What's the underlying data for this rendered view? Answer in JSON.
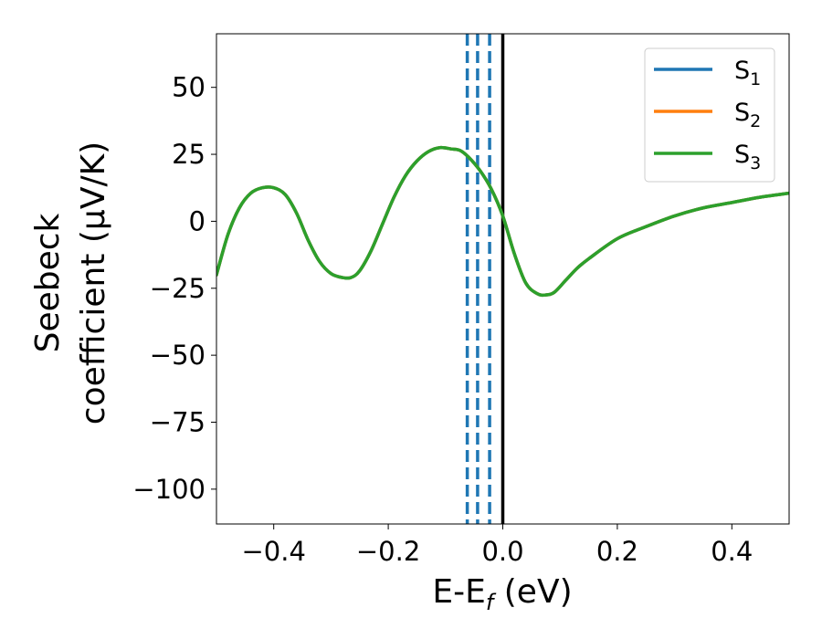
{
  "chart_data": {
    "type": "line",
    "xlabel": "E-E",
    "xlabel_sub": "f",
    "xlabel_unit": " (eV)",
    "ylabel_line1": "Seebeck",
    "ylabel_line2": "coefficient  (μV/K)",
    "xlim": [
      -0.5,
      0.5
    ],
    "ylim": [
      -113,
      70
    ],
    "xticks": [
      -0.4,
      -0.2,
      0.0,
      0.2,
      0.4
    ],
    "xtick_labels": [
      "−0.4",
      "−0.2",
      "0.0",
      "0.2",
      "0.4"
    ],
    "yticks": [
      50,
      25,
      0,
      -25,
      -50,
      -75,
      -100
    ],
    "ytick_labels": [
      "50",
      "25",
      "0",
      "−25",
      "−50",
      "−75",
      "−100"
    ],
    "grid": false,
    "legend_position": "top-right",
    "vlines": [
      {
        "x": -0.062,
        "style": "dashed",
        "color": "#1f77b4"
      },
      {
        "x": -0.044,
        "style": "dashed",
        "color": "#1f77b4"
      },
      {
        "x": -0.023,
        "style": "dashed",
        "color": "#1f77b4"
      },
      {
        "x": 0.0,
        "style": "solid",
        "color": "#000000"
      }
    ],
    "series": [
      {
        "name": "S",
        "sub": "1",
        "color": "#1f77b4",
        "x": [
          -0.5,
          -0.48,
          -0.46,
          -0.44,
          -0.42,
          -0.4,
          -0.38,
          -0.36,
          -0.34,
          -0.32,
          -0.3,
          -0.28,
          -0.265,
          -0.25,
          -0.23,
          -0.21,
          -0.19,
          -0.17,
          -0.15,
          -0.13,
          -0.11,
          -0.09,
          -0.075,
          -0.06,
          -0.04,
          -0.02,
          0.0,
          0.02,
          0.04,
          0.06,
          0.075,
          0.09,
          0.11,
          0.13,
          0.15,
          0.2,
          0.25,
          0.3,
          0.35,
          0.4,
          0.45,
          0.5
        ],
        "y": [
          -20,
          -5,
          5,
          10.5,
          12.5,
          12.5,
          10,
          3,
          -7,
          -15,
          -19.5,
          -21,
          -21,
          -18.5,
          -11,
          -1,
          9,
          17,
          22.5,
          26,
          27.5,
          27,
          26.5,
          24,
          19,
          12,
          2,
          -12,
          -23,
          -27,
          -27.5,
          -26.5,
          -22,
          -17.5,
          -14,
          -6.5,
          -2,
          2,
          5,
          7,
          9,
          10.5
        ]
      },
      {
        "name": "S",
        "sub": "2",
        "color": "#ff7f0e",
        "x": [
          -0.5,
          -0.48,
          -0.46,
          -0.44,
          -0.42,
          -0.4,
          -0.38,
          -0.36,
          -0.34,
          -0.32,
          -0.3,
          -0.28,
          -0.265,
          -0.25,
          -0.23,
          -0.21,
          -0.19,
          -0.17,
          -0.15,
          -0.13,
          -0.11,
          -0.09,
          -0.075,
          -0.06,
          -0.04,
          -0.02,
          0.0,
          0.02,
          0.04,
          0.06,
          0.075,
          0.09,
          0.11,
          0.13,
          0.15,
          0.2,
          0.25,
          0.3,
          0.35,
          0.4,
          0.45,
          0.5
        ],
        "y": [
          -20,
          -5,
          5,
          10.5,
          12.5,
          12.5,
          10,
          3,
          -7,
          -15,
          -19.5,
          -21,
          -21,
          -18.5,
          -11,
          -1,
          9,
          17,
          22.5,
          26,
          27.5,
          27,
          26.5,
          24,
          19,
          12,
          2,
          -12,
          -23,
          -27,
          -27.5,
          -26.5,
          -22,
          -17.5,
          -14,
          -6.5,
          -2,
          2,
          5,
          7,
          9,
          10.5
        ]
      },
      {
        "name": "S",
        "sub": "3",
        "color": "#2ca02c",
        "x": [
          -0.5,
          -0.48,
          -0.46,
          -0.44,
          -0.42,
          -0.4,
          -0.38,
          -0.36,
          -0.34,
          -0.32,
          -0.3,
          -0.28,
          -0.265,
          -0.25,
          -0.23,
          -0.21,
          -0.19,
          -0.17,
          -0.15,
          -0.13,
          -0.11,
          -0.09,
          -0.075,
          -0.06,
          -0.04,
          -0.02,
          0.0,
          0.02,
          0.04,
          0.06,
          0.075,
          0.09,
          0.11,
          0.13,
          0.15,
          0.2,
          0.25,
          0.3,
          0.35,
          0.4,
          0.45,
          0.5
        ],
        "y": [
          -20,
          -5,
          5,
          10.5,
          12.5,
          12.5,
          10,
          3,
          -7,
          -15,
          -19.5,
          -21,
          -21,
          -18.5,
          -11,
          -1,
          9,
          17,
          22.5,
          26,
          27.5,
          27,
          26.5,
          24,
          19,
          12,
          2,
          -12,
          -23,
          -27,
          -27.5,
          -26.5,
          -22,
          -17.5,
          -14,
          -6.5,
          -2,
          2,
          5,
          7,
          9,
          10.5
        ]
      }
    ]
  }
}
